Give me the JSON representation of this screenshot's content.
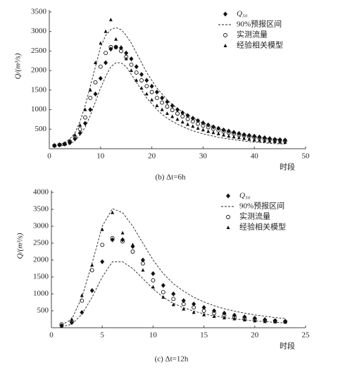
{
  "chart_data": [
    {
      "type": "line",
      "caption": "(b) Δt=6h",
      "y_label": "Q/(m³/s)",
      "x_label": "时段",
      "xlim": [
        0,
        50
      ],
      "xticks": [
        0,
        10,
        20,
        30,
        40,
        50
      ],
      "ylim": [
        0,
        3500
      ],
      "yticks": [
        500,
        1000,
        1500,
        2000,
        2500,
        3000,
        3500
      ],
      "x": [
        1,
        2,
        3,
        4,
        5,
        6,
        7,
        8,
        9,
        10,
        11,
        12,
        13,
        14,
        15,
        16,
        17,
        18,
        19,
        20,
        21,
        22,
        23,
        24,
        25,
        26,
        27,
        28,
        29,
        30,
        31,
        32,
        33,
        34,
        35,
        36,
        37,
        38,
        39,
        40,
        41,
        42,
        43,
        44,
        45,
        46
      ],
      "series": [
        {
          "name": "Q₅₀",
          "marker": "diamond",
          "color": "#111",
          "values": [
            80,
            100,
            120,
            150,
            250,
            400,
            650,
            1000,
            1400,
            1800,
            2200,
            2550,
            2600,
            2580,
            2450,
            2300,
            2100,
            1900,
            1750,
            1600,
            1450,
            1300,
            1200,
            1100,
            1000,
            920,
            850,
            780,
            720,
            660,
            610,
            560,
            520,
            480,
            450,
            420,
            390,
            360,
            340,
            320,
            300,
            280,
            260,
            240,
            230,
            220
          ]
        },
        {
          "name": "90%预报区间",
          "marker": "dashed",
          "color": "#222",
          "upper": [
            80,
            100,
            150,
            250,
            400,
            700,
            1100,
            1600,
            2100,
            2600,
            2900,
            3050,
            3100,
            3050,
            2900,
            2700,
            2450,
            2200,
            1950,
            1750,
            1550,
            1400,
            1250,
            1130,
            1030,
            940,
            860,
            790,
            720,
            660,
            610,
            560,
            520,
            480,
            440,
            410,
            380,
            350,
            330,
            310,
            290,
            270,
            260,
            250,
            240,
            230
          ],
          "lower": [
            60,
            70,
            90,
            120,
            200,
            350,
            550,
            850,
            1200,
            1550,
            1850,
            2100,
            2200,
            2200,
            2100,
            1900,
            1700,
            1500,
            1300,
            1150,
            1000,
            880,
            780,
            700,
            630,
            570,
            510,
            460,
            420,
            380,
            350,
            320,
            290,
            270,
            250,
            230,
            210,
            195,
            180,
            170,
            160,
            150,
            140,
            130,
            125,
            120
          ]
        },
        {
          "name": "实测流量",
          "marker": "circle",
          "color": "#111",
          "values": [
            80,
            100,
            120,
            180,
            300,
            500,
            800,
            1300,
            1700,
            2100,
            2450,
            2600,
            2600,
            2500,
            2350,
            2150,
            1950,
            1750,
            1600,
            1450,
            1300,
            1180,
            1080,
            990,
            900,
            830,
            760,
            700,
            640,
            590,
            550,
            510,
            470,
            440,
            410,
            380,
            350,
            330,
            310,
            290,
            270,
            250,
            240,
            220,
            210,
            200
          ]
        },
        {
          "name": "经验相关模型",
          "marker": "triangle",
          "color": "#111",
          "values": [
            80,
            100,
            130,
            200,
            350,
            600,
            1000,
            1500,
            2200,
            2700,
            3000,
            3300,
            2800,
            2600,
            2300,
            2000,
            1750,
            1550,
            1400,
            1250,
            1100,
            1000,
            900,
            820,
            750,
            680,
            620,
            570,
            520,
            480,
            440,
            410,
            380,
            350,
            320,
            300,
            280,
            260,
            240,
            220,
            210,
            200,
            190,
            180,
            170,
            160
          ]
        }
      ]
    },
    {
      "type": "line",
      "caption": "(c) Δt=12h",
      "y_label": "Q/(m³/s)",
      "x_label": "时段",
      "xlim": [
        0,
        25
      ],
      "xticks": [
        0,
        5,
        10,
        15,
        20,
        25
      ],
      "ylim": [
        0,
        4000
      ],
      "yticks": [
        500,
        1000,
        1500,
        2000,
        2500,
        3000,
        3500,
        4000
      ],
      "x": [
        1,
        2,
        3,
        4,
        5,
        6,
        7,
        8,
        9,
        10,
        11,
        12,
        13,
        14,
        15,
        16,
        17,
        18,
        19,
        20,
        21,
        22,
        23
      ],
      "series": [
        {
          "name": "Q₅₀",
          "marker": "diamond",
          "color": "#111",
          "values": [
            60,
            150,
            450,
            1100,
            1950,
            2600,
            2600,
            2400,
            2000,
            1600,
            1250,
            1000,
            800,
            700,
            600,
            500,
            430,
            370,
            320,
            280,
            240,
            210,
            190
          ]
        },
        {
          "name": "90%预报区间",
          "marker": "dashed",
          "color": "#222",
          "upper": [
            80,
            250,
            900,
            1900,
            3000,
            3520,
            3400,
            3000,
            2500,
            2000,
            1600,
            1300,
            1080,
            900,
            760,
            650,
            560,
            490,
            430,
            380,
            340,
            300,
            270
          ],
          "lower": [
            30,
            100,
            400,
            900,
            1500,
            1950,
            1950,
            1750,
            1450,
            1150,
            900,
            720,
            590,
            490,
            410,
            350,
            300,
            260,
            230,
            200,
            180,
            160,
            140
          ]
        },
        {
          "name": "实测流量",
          "marker": "circle",
          "color": "#111",
          "values": [
            100,
            180,
            800,
            1700,
            2450,
            2650,
            2550,
            2250,
            1900,
            1400,
            1050,
            850,
            700,
            600,
            500,
            430,
            370,
            320,
            280,
            250,
            220,
            200,
            180
          ]
        },
        {
          "name": "经验相关模型",
          "marker": "triangle",
          "color": "#111",
          "values": [
            50,
            250,
            950,
            1850,
            2900,
            3400,
            2800,
            2450,
            1700,
            1200,
            900,
            680,
            550,
            450,
            380,
            330,
            290,
            260,
            230,
            200,
            180,
            170,
            160
          ]
        }
      ]
    }
  ]
}
